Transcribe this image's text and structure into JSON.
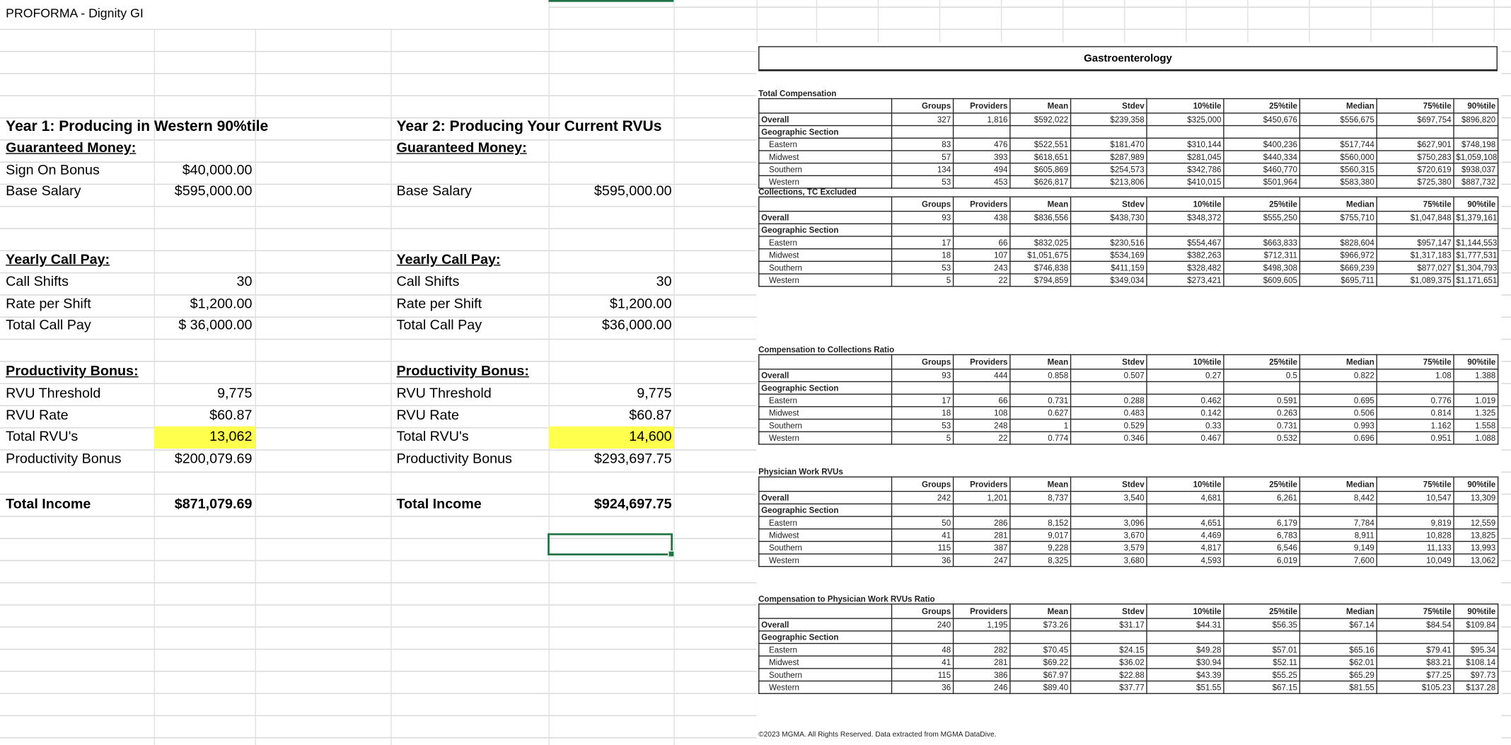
{
  "sheet": {
    "title": "PROFORMA - Dignity GI"
  },
  "year1": {
    "heading": "Year 1: Producing in Western 90%tile",
    "guaranteed": "Guaranteed Money:",
    "sign_on_label": "Sign On Bonus",
    "sign_on_value": "$40,000.00",
    "base_label": "Base Salary",
    "base_value": "$595,000.00",
    "call_heading": "Yearly Call Pay:",
    "call_shifts_label": "Call Shifts",
    "call_shifts_value": "30",
    "rate_label": "Rate per Shift",
    "rate_value": "$1,200.00",
    "total_call_label": "Total Call Pay",
    "total_call_value": "$ 36,000.00",
    "prod_heading": "Productivity Bonus:",
    "threshold_label": "RVU Threshold",
    "threshold_value": "9,775",
    "rvu_rate_label": "RVU Rate",
    "rvu_rate_value": "$60.87",
    "total_rvu_label": "Total RVU's",
    "total_rvu_value": "13,062",
    "prod_bonus_label": "Productivity Bonus",
    "prod_bonus_value": "$200,079.69",
    "income_label": "Total Income",
    "income_value": "$871,079.69"
  },
  "year2": {
    "heading": "Year 2: Producing Your Current RVUs",
    "guaranteed": "Guaranteed Money:",
    "base_label": "Base Salary",
    "base_value": "$595,000.00",
    "call_heading": "Yearly Call Pay:",
    "call_shifts_label": "Call Shifts",
    "call_shifts_value": "30",
    "rate_label": "Rate per Shift",
    "rate_value": "$1,200.00",
    "total_call_label": "Total Call Pay",
    "total_call_value": "$36,000.00",
    "prod_heading": "Productivity Bonus:",
    "threshold_label": "RVU Threshold",
    "threshold_value": "9,775",
    "rvu_rate_label": "RVU Rate",
    "rvu_rate_value": "$60.87",
    "total_rvu_label": "Total RVU's",
    "total_rvu_value": "14,600",
    "prod_bonus_label": "Productivity Bonus",
    "prod_bonus_value": "$293,697.75",
    "income_label": "Total Income",
    "income_value": "$924,697.75"
  },
  "colors": {
    "highlight": "#ffff4d",
    "selection": "#217346"
  },
  "mgma": {
    "title": "Gastroenterology",
    "columns": [
      "Groups",
      "Providers",
      "Mean",
      "Stdev",
      "10%tile",
      "25%tile",
      "Median",
      "75%tile",
      "90%tile"
    ],
    "geo_label": "Geographic Section",
    "footer": "©2023 MGMA. All Rights Reserved. Data extracted from MGMA DataDive.",
    "sections": [
      {
        "title": "Total Compensation",
        "rows": [
          {
            "label": "Overall",
            "values": [
              "327",
              "1,816",
              "$592,022",
              "$239,358",
              "$325,000",
              "$450,676",
              "$556,675",
              "$697,754",
              "$896,820"
            ]
          },
          {
            "label": "Eastern",
            "values": [
              "83",
              "476",
              "$522,551",
              "$181,470",
              "$310,144",
              "$400,236",
              "$517,744",
              "$627,901",
              "$748,198"
            ]
          },
          {
            "label": "Midwest",
            "values": [
              "57",
              "393",
              "$618,651",
              "$287,989",
              "$281,045",
              "$440,334",
              "$560,000",
              "$750,283",
              "$1,059,108"
            ]
          },
          {
            "label": "Southern",
            "values": [
              "134",
              "494",
              "$605,869",
              "$254,573",
              "$342,786",
              "$460,770",
              "$560,315",
              "$720,619",
              "$938,037"
            ]
          },
          {
            "label": "Western",
            "values": [
              "53",
              "453",
              "$626,817",
              "$213,806",
              "$410,015",
              "$501,964",
              "$583,380",
              "$725,380",
              "$887,732"
            ]
          }
        ]
      },
      {
        "title": "Collections, TC Excluded",
        "rows": [
          {
            "label": "Overall",
            "values": [
              "93",
              "438",
              "$836,556",
              "$438,730",
              "$348,372",
              "$555,250",
              "$755,710",
              "$1,047,848",
              "$1,379,161"
            ]
          },
          {
            "label": "Eastern",
            "values": [
              "17",
              "66",
              "$832,025",
              "$230,516",
              "$554,467",
              "$663,833",
              "$828,604",
              "$957,147",
              "$1,144,553"
            ]
          },
          {
            "label": "Midwest",
            "values": [
              "18",
              "107",
              "$1,051,675",
              "$534,169",
              "$382,263",
              "$712,311",
              "$966,972",
              "$1,317,183",
              "$1,777,531"
            ]
          },
          {
            "label": "Southern",
            "values": [
              "53",
              "243",
              "$746,838",
              "$411,159",
              "$328,482",
              "$498,308",
              "$669,239",
              "$877,027",
              "$1,304,793"
            ]
          },
          {
            "label": "Western",
            "values": [
              "5",
              "22",
              "$794,859",
              "$349,034",
              "$273,421",
              "$609,605",
              "$695,711",
              "$1,089,375",
              "$1,171,651"
            ]
          }
        ]
      },
      {
        "title": "Compensation to Collections Ratio",
        "rows": [
          {
            "label": "Overall",
            "values": [
              "93",
              "444",
              "0.858",
              "0.507",
              "0.27",
              "0.5",
              "0.822",
              "1.08",
              "1.388"
            ]
          },
          {
            "label": "Eastern",
            "values": [
              "17",
              "66",
              "0.731",
              "0.288",
              "0.462",
              "0.591",
              "0.695",
              "0.776",
              "1.019"
            ]
          },
          {
            "label": "Midwest",
            "values": [
              "18",
              "108",
              "0.627",
              "0.483",
              "0.142",
              "0.263",
              "0.506",
              "0.814",
              "1.325"
            ]
          },
          {
            "label": "Southern",
            "values": [
              "53",
              "248",
              "1",
              "0.529",
              "0.33",
              "0.731",
              "0.993",
              "1.162",
              "1.558"
            ]
          },
          {
            "label": "Western",
            "values": [
              "5",
              "22",
              "0.774",
              "0.346",
              "0.467",
              "0.532",
              "0.696",
              "0.951",
              "1.088"
            ]
          }
        ]
      },
      {
        "title": "Physician Work RVUs",
        "rows": [
          {
            "label": "Overall",
            "values": [
              "242",
              "1,201",
              "8,737",
              "3,540",
              "4,681",
              "6,261",
              "8,442",
              "10,547",
              "13,309"
            ]
          },
          {
            "label": "Eastern",
            "values": [
              "50",
              "286",
              "8,152",
              "3,096",
              "4,651",
              "6,179",
              "7,784",
              "9,819",
              "12,559"
            ]
          },
          {
            "label": "Midwest",
            "values": [
              "41",
              "281",
              "9,017",
              "3,670",
              "4,469",
              "6,783",
              "8,911",
              "10,828",
              "13,825"
            ]
          },
          {
            "label": "Southern",
            "values": [
              "115",
              "387",
              "9,228",
              "3,579",
              "4,817",
              "6,546",
              "9,149",
              "11,133",
              "13,993"
            ]
          },
          {
            "label": "Western",
            "values": [
              "36",
              "247",
              "8,325",
              "3,680",
              "4,593",
              "6,019",
              "7,600",
              "10,049",
              "13,062"
            ]
          }
        ]
      },
      {
        "title": "Compensation to Physician Work RVUs Ratio",
        "rows": [
          {
            "label": "Overall",
            "values": [
              "240",
              "1,195",
              "$73.26",
              "$31.17",
              "$44.31",
              "$56.35",
              "$67.14",
              "$84.54",
              "$109.84"
            ]
          },
          {
            "label": "Eastern",
            "values": [
              "48",
              "282",
              "$70.45",
              "$24.15",
              "$49.28",
              "$57.01",
              "$65.16",
              "$79.41",
              "$95.34"
            ]
          },
          {
            "label": "Midwest",
            "values": [
              "41",
              "281",
              "$69.22",
              "$36.02",
              "$30.94",
              "$52.11",
              "$62.01",
              "$83.21",
              "$108.14"
            ]
          },
          {
            "label": "Southern",
            "values": [
              "115",
              "386",
              "$67.97",
              "$22.88",
              "$43.39",
              "$55.25",
              "$65.29",
              "$77.25",
              "$97.73"
            ]
          },
          {
            "label": "Western",
            "values": [
              "36",
              "246",
              "$89.40",
              "$37.77",
              "$51.55",
              "$67.15",
              "$81.55",
              "$105.23",
              "$137.28"
            ]
          }
        ]
      }
    ]
  }
}
